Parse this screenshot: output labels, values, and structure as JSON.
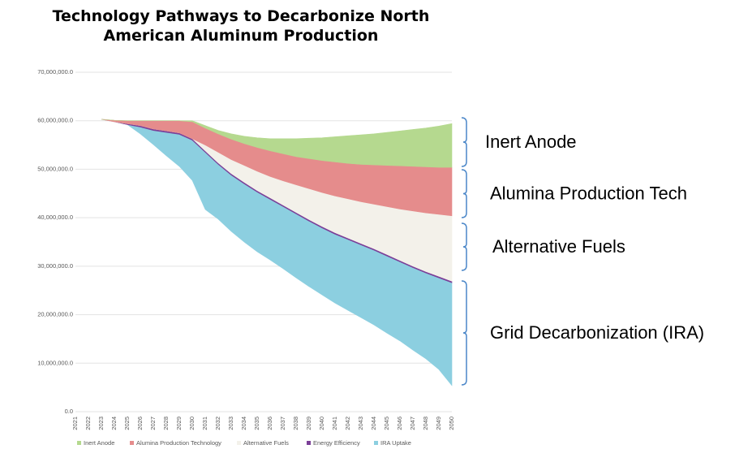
{
  "chart_data": {
    "type": "stacked-area",
    "title": "Technology Pathways to Decarbonize North American Aluminum Production",
    "categories": [
      "2021",
      "2022",
      "2023",
      "2024",
      "2025",
      "2026",
      "2027",
      "2028",
      "2029",
      "2030",
      "2031",
      "2032",
      "2033",
      "2034",
      "2035",
      "2036",
      "2037",
      "2038",
      "2039",
      "2040",
      "2041",
      "2042",
      "2043",
      "2044",
      "2045",
      "2046",
      "2047",
      "2048",
      "2049",
      "2050"
    ],
    "baseline": [
      null,
      null,
      60300000,
      59800000,
      59200000,
      57300000,
      55100000,
      52800000,
      50600000,
      47700000,
      41700000,
      39700000,
      37200000,
      35000000,
      33000000,
      31300000,
      29500000,
      27600000,
      25800000,
      24100000,
      22400000,
      20900000,
      19400000,
      17900000,
      16200000,
      14600000,
      12700000,
      10900000,
      8700000,
      5400000
    ],
    "series": [
      {
        "name": "IRA Uptake",
        "color": "#8ccfe0",
        "values": [
          null,
          null,
          0,
          0,
          0,
          1400000,
          2900000,
          4800000,
          6600000,
          8300000,
          11800000,
          11300000,
          11600000,
          12000000,
          12300000,
          12500000,
          12800000,
          13200000,
          13500000,
          13800000,
          14200000,
          14600000,
          15000000,
          15400000,
          15900000,
          16300000,
          17000000,
          17700000,
          18900000,
          21200000
        ]
      },
      {
        "name": "Energy Efficiency",
        "color": "#7b3f98",
        "values": [
          null,
          null,
          0,
          0,
          200000,
          300000,
          300000,
          300000,
          300000,
          300000,
          300000,
          300000,
          300000,
          300000,
          300000,
          300000,
          300000,
          300000,
          300000,
          300000,
          300000,
          300000,
          300000,
          300000,
          300000,
          300000,
          300000,
          300000,
          300000,
          300000
        ]
      },
      {
        "name": "Alternative Fuels",
        "color": "#f3f1ea",
        "values": [
          null,
          null,
          0,
          0,
          0,
          0,
          0,
          0,
          0,
          0,
          1200000,
          2200000,
          2900000,
          3500000,
          4000000,
          4400000,
          5000000,
          5700000,
          6400000,
          7000000,
          7600000,
          8100000,
          8600000,
          9200000,
          9900000,
          10600000,
          11400000,
          12100000,
          12800000,
          13500000
        ]
      },
      {
        "name": "Alumina Production Technology",
        "color": "#e58c8c",
        "values": [
          null,
          null,
          0,
          300000,
          600000,
          1000000,
          1700000,
          2100000,
          2500000,
          3500000,
          3500000,
          3800000,
          4200000,
          4500000,
          4900000,
          5300000,
          5600000,
          5800000,
          6200000,
          6600000,
          7000000,
          7300000,
          7700000,
          8100000,
          8500000,
          8900000,
          9200000,
          9500000,
          9700000,
          10000000
        ]
      },
      {
        "name": "Inert Anode",
        "color": "#b5d98f",
        "values": [
          null,
          null,
          0,
          0,
          0,
          0,
          0,
          0,
          0,
          200000,
          500000,
          700000,
          1100000,
          1500000,
          2000000,
          2500000,
          3100000,
          3700000,
          4200000,
          4700000,
          5200000,
          5700000,
          6100000,
          6400000,
          6800000,
          7200000,
          7600000,
          8000000,
          8500000,
          9000000
        ]
      }
    ],
    "legend_order": [
      4,
      3,
      2,
      1,
      0
    ],
    "ylim": [
      0,
      70000000
    ],
    "yticks": [
      {
        "value": 0,
        "label": "0.0"
      },
      {
        "value": 10000000,
        "label": "10,000,000.0"
      },
      {
        "value": 20000000,
        "label": "20,000,000.0"
      },
      {
        "value": 30000000,
        "label": "30,000,000.0"
      },
      {
        "value": 40000000,
        "label": "40,000,000.0"
      },
      {
        "value": 50000000,
        "label": "50,000,000.0"
      },
      {
        "value": 60000000,
        "label": "60,000,000.0"
      },
      {
        "value": 70000000,
        "label": "70,000,000.0"
      }
    ],
    "grid": true,
    "annotations": [
      "Inert Anode",
      "Alumina Production Tech",
      "Alternative Fuels",
      "Grid Decarbonization (IRA)"
    ]
  }
}
